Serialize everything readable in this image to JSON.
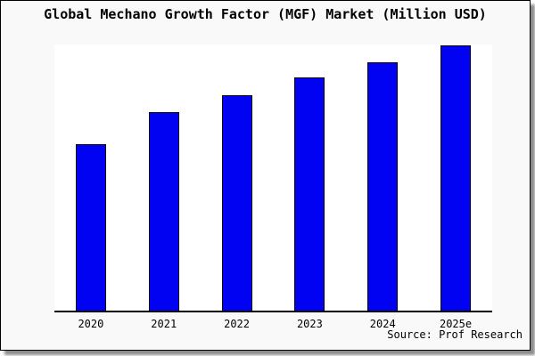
{
  "chart_data": {
    "type": "bar",
    "title": "Global Mechano Growth Factor (MGF) Market (Million USD)",
    "categories": [
      "2020",
      "2021",
      "2022",
      "2023",
      "2024",
      "2025e"
    ],
    "values": [
      62.6,
      74.6,
      81.1,
      87.5,
      93.4,
      99.8
    ],
    "values_estimated": true,
    "xlabel": "",
    "ylabel": "",
    "ylim": [
      0,
      100
    ],
    "grid": false,
    "legend": false,
    "bar_color": "#0202f2",
    "bar_border_color": "#000000",
    "plot_background": "#ffffff",
    "card_background": "#f9f9f9"
  },
  "footer": {
    "source": "Source: Prof Research"
  }
}
